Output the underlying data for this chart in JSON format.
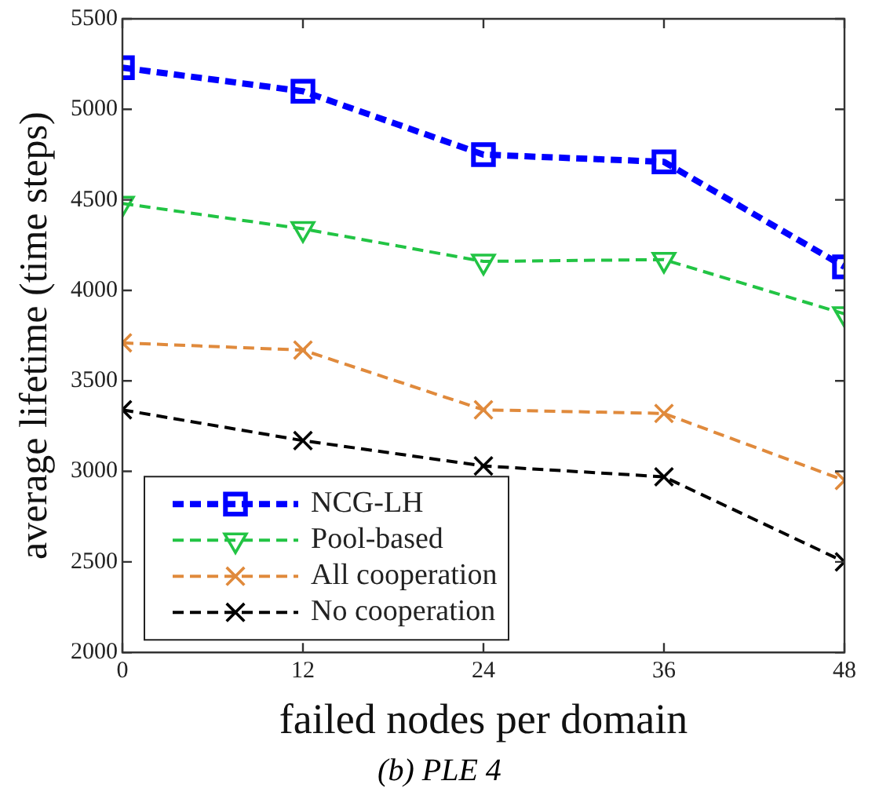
{
  "chart_data": {
    "type": "line",
    "xlabel": "failed nodes per domain",
    "ylabel": "average lifetime (time steps)",
    "x": [
      0,
      12,
      24,
      36,
      48
    ],
    "xlim": [
      0,
      48
    ],
    "xticks": [
      0,
      12,
      24,
      36,
      48
    ],
    "ylim": [
      2000,
      5500
    ],
    "yticks": [
      2000,
      2500,
      3000,
      3500,
      4000,
      4500,
      5000,
      5500
    ],
    "grid": false,
    "legend": "bottom left",
    "line_style": "dashed",
    "annotations": [
      "(b) PLE 4"
    ],
    "series": [
      {
        "name": "NCG-LH",
        "color": "#0000ff",
        "marker": "square",
        "values": [
          5230,
          5100,
          4750,
          4710,
          4130
        ]
      },
      {
        "name": "Pool-based",
        "color": "#22c444",
        "marker": "triangle",
        "values": [
          4480,
          4340,
          4160,
          4170,
          3870
        ]
      },
      {
        "name": "All cooperation",
        "color": "#e08a3c",
        "marker": "cross",
        "values": [
          3710,
          3670,
          3340,
          3320,
          2950
        ]
      },
      {
        "name": "No cooperation",
        "color": "#000000",
        "marker": "cross",
        "values": [
          3340,
          3170,
          3030,
          2970,
          2500
        ]
      }
    ]
  }
}
